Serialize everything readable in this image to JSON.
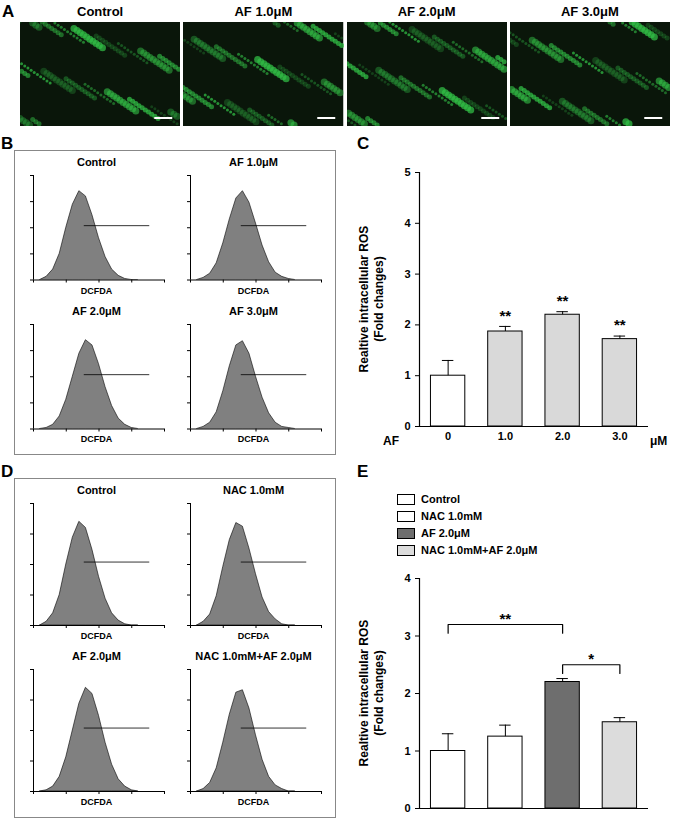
{
  "chart_data": [
    {
      "panel": "A",
      "type": "image",
      "titles": [
        "Control",
        "AF 1.0μM",
        "AF 2.0μM",
        "AF 3.0μM"
      ]
    },
    {
      "panel": "B",
      "type": "area",
      "xlabel": "DCFDA",
      "xlim": [
        0,
        4
      ],
      "xticks": [
        0,
        1,
        2,
        3,
        4
      ],
      "ylim": [
        0,
        100
      ],
      "yticks": [
        0,
        25,
        50,
        75,
        100
      ],
      "tick_labels": false,
      "color": "#808080",
      "x": [
        0.2,
        0.4,
        0.6,
        0.8,
        1.0,
        1.2,
        1.4,
        1.6,
        1.8,
        2.0,
        2.2,
        2.4,
        2.6,
        2.8,
        3.0,
        3.2
      ],
      "series": [
        {
          "name": "Control",
          "values": [
            0,
            3,
            10,
            25,
            50,
            72,
            85,
            80,
            62,
            40,
            22,
            10,
            4,
            1,
            0,
            0
          ]
        },
        {
          "name": "AF 1.0μM",
          "values": [
            0,
            2,
            6,
            16,
            35,
            58,
            78,
            85,
            74,
            54,
            33,
            17,
            7,
            3,
            1,
            0
          ]
        },
        {
          "name": "AF 2.0μM",
          "values": [
            0,
            1,
            4,
            12,
            28,
            50,
            72,
            85,
            80,
            62,
            40,
            22,
            10,
            4,
            1,
            0
          ]
        },
        {
          "name": "AF 3.0μM",
          "values": [
            0,
            2,
            6,
            16,
            36,
            60,
            80,
            84,
            72,
            50,
            30,
            15,
            6,
            2,
            1,
            0
          ]
        }
      ],
      "gate": {
        "x": [
          1.55,
          3.55
        ],
        "y": 52
      }
    },
    {
      "panel": "C",
      "type": "bar",
      "categories": [
        "0",
        "1.0",
        "2.0",
        "3.0"
      ],
      "values": [
        1.0,
        1.87,
        2.2,
        1.72
      ],
      "errors": [
        0.3,
        0.1,
        0.06,
        0.06
      ],
      "colors": [
        "#ffffff",
        "#d9d9d9",
        "#d9d9d9",
        "#d9d9d9"
      ],
      "ylabel": [
        "Realtive intracellular ROS",
        "(Fold changes)"
      ],
      "xlabel": "AF",
      "xunit": "μM",
      "ylim": [
        0,
        5
      ],
      "yticks": [
        0,
        1,
        2,
        3,
        4,
        5
      ],
      "annotations": [
        {
          "text": "**",
          "category": 1,
          "y": 2.0
        },
        {
          "text": "**",
          "category": 2,
          "y": 2.3
        },
        {
          "text": "**",
          "category": 3,
          "y": 1.82
        }
      ]
    },
    {
      "panel": "D",
      "type": "area",
      "xlabel": "DCFDA",
      "xlim": [
        0,
        4
      ],
      "xticks": [
        0,
        1,
        2,
        3,
        4
      ],
      "ylim": [
        0,
        100
      ],
      "yticks": [
        0,
        25,
        50,
        75,
        100
      ],
      "tick_labels": false,
      "color": "#808080",
      "x": [
        0.2,
        0.4,
        0.6,
        0.8,
        1.0,
        1.2,
        1.4,
        1.6,
        1.8,
        2.0,
        2.2,
        2.4,
        2.6,
        2.8,
        3.0,
        3.2
      ],
      "series": [
        {
          "name": "Control",
          "values": [
            0,
            3,
            10,
            25,
            50,
            72,
            85,
            80,
            62,
            40,
            22,
            10,
            4,
            1,
            0,
            0
          ]
        },
        {
          "name": "NAC 1.0mM",
          "values": [
            0,
            3,
            9,
            24,
            48,
            70,
            84,
            81,
            63,
            42,
            23,
            11,
            5,
            1,
            0,
            0
          ]
        },
        {
          "name": "AF 2.0μM",
          "values": [
            0,
            1,
            4,
            12,
            28,
            50,
            72,
            85,
            80,
            62,
            40,
            22,
            10,
            4,
            1,
            0
          ]
        },
        {
          "name": "NAC 1.0mM+AF 2.0μM",
          "values": [
            0,
            2,
            7,
            19,
            40,
            63,
            81,
            83,
            68,
            46,
            26,
            12,
            5,
            2,
            0,
            0
          ]
        }
      ],
      "gate": {
        "x": [
          1.55,
          3.55
        ],
        "y": 52
      }
    },
    {
      "panel": "E",
      "type": "bar",
      "categories": [
        null,
        null,
        null,
        null
      ],
      "legend": "top",
      "series": [
        {
          "name": "Control",
          "color": "#ffffff",
          "values": [
            1.0,
            null,
            null,
            null
          ],
          "errors": [
            0.3,
            null,
            null,
            null
          ]
        },
        {
          "name": "NAC 1.0mM",
          "color": "#ffffff",
          "values": [
            null,
            1.25,
            null,
            null
          ],
          "errors": [
            null,
            0.2,
            null,
            null
          ]
        },
        {
          "name": "AF 2.0μM",
          "color": "#6e6e6e",
          "values": [
            null,
            null,
            2.2,
            null
          ],
          "errors": [
            null,
            null,
            0.06,
            null
          ]
        },
        {
          "name": "NAC 1.0mM+AF 2.0μM",
          "color": "#dcdcdc",
          "values": [
            null,
            null,
            null,
            1.5
          ],
          "errors": [
            null,
            null,
            null,
            0.08
          ]
        }
      ],
      "ylabel": [
        "Realtive intracellular ROS",
        "(Fold changes)"
      ],
      "ylim": [
        0,
        4
      ],
      "yticks": [
        0,
        1,
        2,
        3,
        4
      ],
      "brackets": [
        {
          "text": "**",
          "from": 0,
          "to": 2,
          "y": 3.2
        },
        {
          "text": "*",
          "from": 2,
          "to": 3,
          "y": 2.5
        }
      ]
    }
  ]
}
